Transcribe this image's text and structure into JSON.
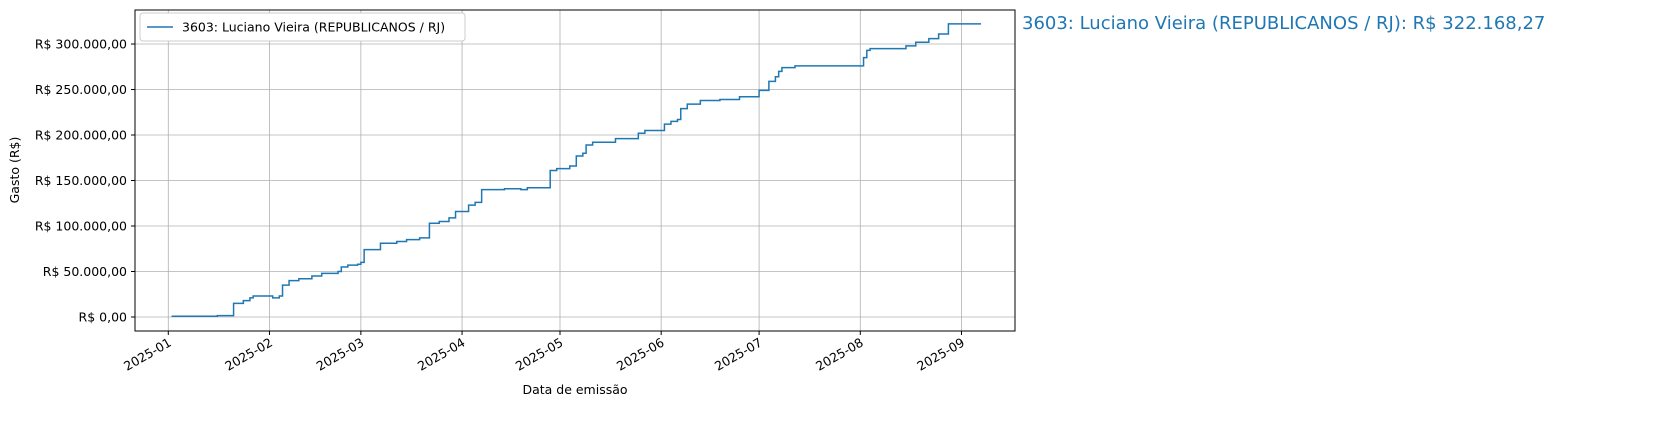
{
  "chart_data": {
    "type": "step",
    "x_label": "Data de emissão",
    "y_label": "Gasto (R$)",
    "annotation": "3603: Luciano Vieira (REPUBLICANOS / RJ): R$ 322.168,27",
    "xlim": [
      -10.2,
      259.4
    ],
    "xticks": [
      {
        "value": 0,
        "label": "2025-01"
      },
      {
        "value": 31,
        "label": "2025-02"
      },
      {
        "value": 59,
        "label": "2025-03"
      },
      {
        "value": 90,
        "label": "2025-04"
      },
      {
        "value": 120,
        "label": "2025-05"
      },
      {
        "value": 151,
        "label": "2025-06"
      },
      {
        "value": 181,
        "label": "2025-07"
      },
      {
        "value": 212,
        "label": "2025-08"
      },
      {
        "value": 243,
        "label": "2025-09"
      }
    ],
    "ylim": [
      -15400,
      337400
    ],
    "yticks": [
      {
        "value": 0,
        "label": "R$ 0,00"
      },
      {
        "value": 50000,
        "label": "R$ 50.000,00"
      },
      {
        "value": 100000,
        "label": "R$ 100.000,00"
      },
      {
        "value": 150000,
        "label": "R$ 150.000,00"
      },
      {
        "value": 200000,
        "label": "R$ 200.000,00"
      },
      {
        "value": 250000,
        "label": "R$ 250.000,00"
      },
      {
        "value": 300000,
        "label": "R$ 300.000,00"
      }
    ],
    "grid": true,
    "legend": "upper left",
    "series": [
      {
        "name": "3603: Luciano Vieira (REPUBLICANOS / RJ)",
        "color": "#1f77b4",
        "x": [
          1,
          15,
          20,
          23,
          25,
          26,
          32,
          34,
          35,
          37,
          40,
          44,
          47,
          52,
          53,
          55,
          58,
          59,
          60,
          65,
          70,
          73,
          77,
          80,
          83,
          86,
          88,
          92,
          94,
          96,
          103,
          108,
          110,
          117,
          119,
          123,
          125,
          127,
          128,
          130,
          137,
          144,
          146,
          152,
          154,
          156,
          157,
          159,
          163,
          169,
          175,
          181,
          184,
          186,
          187,
          188,
          192,
          213,
          214,
          215,
          226,
          229,
          233,
          236,
          239,
          249
        ],
        "values": [
          800,
          1500,
          15000,
          18000,
          21000,
          23000,
          21000,
          23000,
          35000,
          40000,
          42000,
          45000,
          48000,
          50000,
          55000,
          57000,
          58000,
          60000,
          74000,
          81000,
          83000,
          85000,
          87000,
          103000,
          105000,
          109000,
          116000,
          123000,
          126000,
          140000,
          141000,
          140000,
          142000,
          161000,
          163000,
          166000,
          177000,
          180000,
          189000,
          192000,
          196000,
          202000,
          205000,
          212000,
          215000,
          217000,
          229000,
          234000,
          238000,
          239000,
          242000,
          249000,
          259000,
          264000,
          270000,
          274000,
          276000,
          285000,
          293000,
          295000,
          298000,
          302000,
          306000,
          311000,
          322168.27,
          322168.27
        ]
      }
    ]
  }
}
